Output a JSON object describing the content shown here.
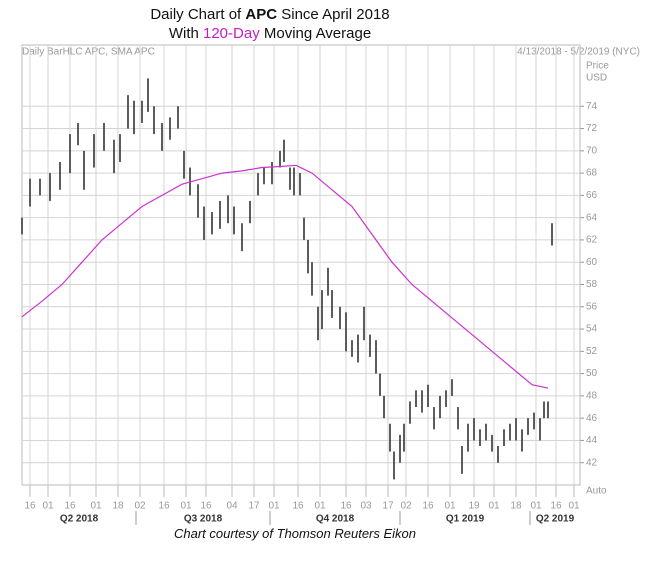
{
  "chart_data": {
    "type": "ohlc",
    "title_parts": [
      "Daily Chart of ",
      "APC",
      " Since April 2018"
    ],
    "subtitle_parts": [
      "With ",
      "120-Day",
      " Moving Average"
    ],
    "info_label": "Daily BarHLC APC, SMA APC",
    "date_range": "4/13/2018 - 5/2/2019 (NYC)",
    "y_label": "Price",
    "y_unit": "USD",
    "scale_mode": "Auto",
    "caption": "Chart courtesy of Thomson Reuters Eikon",
    "grid": true,
    "ylim": [
      40,
      79.5
    ],
    "yticks": [
      42,
      44,
      46,
      48,
      50,
      52,
      54,
      56,
      58,
      60,
      62,
      64,
      66,
      68,
      70,
      72,
      74
    ],
    "xlim": [
      0,
      279
    ],
    "xticks": [
      {
        "value": 4,
        "label": "16"
      },
      {
        "value": 13,
        "label": "01"
      },
      {
        "value": 24,
        "label": "16"
      },
      {
        "value": 37,
        "label": "01"
      },
      {
        "value": 48,
        "label": "18"
      },
      {
        "value": 59,
        "label": "02"
      },
      {
        "value": 71,
        "label": "16"
      },
      {
        "value": 82,
        "label": "01"
      },
      {
        "value": 92,
        "label": "16"
      },
      {
        "value": 105,
        "label": "04"
      },
      {
        "value": 116,
        "label": "17"
      },
      {
        "value": 126,
        "label": "01"
      },
      {
        "value": 138,
        "label": "16"
      },
      {
        "value": 149,
        "label": "01"
      },
      {
        "value": 162,
        "label": "16"
      },
      {
        "value": 172,
        "label": "03"
      },
      {
        "value": 183,
        "label": "17"
      },
      {
        "value": 192,
        "label": "02"
      },
      {
        "value": 203,
        "label": "16"
      },
      {
        "value": 214,
        "label": "01"
      },
      {
        "value": 226,
        "label": "19"
      },
      {
        "value": 236,
        "label": "01"
      },
      {
        "value": 247,
        "label": "18"
      },
      {
        "value": 257,
        "label": "01"
      },
      {
        "value": 267,
        "label": "16"
      },
      {
        "value": 276,
        "label": "01"
      }
    ],
    "quarter_ticks": [
      {
        "value": 0,
        "label": "Q2 2018"
      },
      {
        "value": 57,
        "label": "Q3 2018"
      },
      {
        "value": 124,
        "label": "Q4 2018"
      },
      {
        "value": 189,
        "label": "Q1 2019"
      },
      {
        "value": 254,
        "label": "Q2 2019"
      }
    ],
    "bar_color": "#333333",
    "x": [
      0,
      4,
      9,
      14,
      19,
      24,
      28,
      31,
      36,
      41,
      46,
      49,
      53,
      56,
      60,
      63,
      66,
      70,
      74,
      78,
      81,
      84,
      88,
      91,
      95,
      99,
      103,
      106,
      110,
      114,
      118,
      121,
      125,
      129,
      131,
      134,
      136,
      139,
      141,
      143,
      145,
      148,
      150,
      153,
      155,
      159,
      162,
      165,
      168,
      171,
      174,
      177,
      179,
      181,
      184,
      186,
      189,
      191,
      194,
      197,
      200,
      203,
      206,
      209,
      212,
      215,
      218,
      220,
      223,
      226,
      229,
      232,
      235,
      238,
      241,
      244,
      247,
      250,
      253,
      256,
      259,
      261,
      263,
      265
    ],
    "high": [
      64,
      67.5,
      67.5,
      68,
      69,
      71.5,
      72.5,
      70,
      71.5,
      72.5,
      71,
      71.5,
      75,
      74.5,
      74.5,
      76.5,
      74,
      72.5,
      73,
      74,
      70,
      68.5,
      67,
      65,
      64.5,
      65.5,
      66,
      65,
      63.5,
      65.5,
      68,
      68.5,
      69,
      70,
      71,
      68.5,
      68.5,
      68,
      64,
      62,
      60,
      56,
      57.5,
      59.5,
      57.5,
      56,
      55.5,
      53,
      53.5,
      56,
      53.5,
      53,
      50,
      48,
      45.5,
      43,
      44.5,
      45.5,
      47.5,
      48.5,
      48.5,
      49,
      47,
      48,
      48.5,
      49.5,
      47,
      43.5,
      45.5,
      46,
      45,
      45.5,
      44.5,
      43.5,
      45,
      45.5,
      46,
      45,
      46,
      46.5,
      46,
      47.5,
      47.5,
      63.5
    ],
    "low": [
      62.5,
      65,
      66,
      65.5,
      66.5,
      68,
      70.5,
      66.5,
      68.5,
      70,
      68,
      69,
      72,
      71.5,
      72.5,
      73.5,
      71.5,
      70,
      71,
      72,
      67.5,
      66,
      64,
      62,
      62.5,
      63,
      63.5,
      62.5,
      61,
      63.5,
      66,
      67,
      67,
      68.5,
      69,
      66.5,
      66,
      66,
      62,
      59,
      57,
      53,
      54,
      57,
      55,
      54,
      52,
      51.5,
      51,
      53,
      51.5,
      50,
      48,
      46,
      43,
      40.5,
      42,
      43,
      45.5,
      47,
      46.5,
      47,
      45,
      46,
      47,
      48,
      45,
      41,
      43,
      44,
      43.5,
      44,
      43,
      42,
      43.5,
      44,
      44,
      43,
      44.5,
      45,
      44,
      46,
      46,
      61.5
    ],
    "ma": {
      "color": "#cc33cc",
      "x": [
        0,
        10,
        20,
        30,
        40,
        50,
        60,
        70,
        80,
        90,
        100,
        110,
        120,
        130,
        137,
        145,
        155,
        165,
        175,
        185,
        195,
        205,
        215,
        225,
        235,
        245,
        255,
        263
      ],
      "values": [
        55.1,
        56.5,
        58,
        60,
        62,
        63.5,
        65,
        66,
        67,
        67.5,
        68,
        68.2,
        68.5,
        68.6,
        68.7,
        68,
        66.5,
        65,
        62.5,
        60,
        58,
        56.5,
        55,
        53.5,
        52,
        50.5,
        49,
        48.7
      ]
    }
  }
}
